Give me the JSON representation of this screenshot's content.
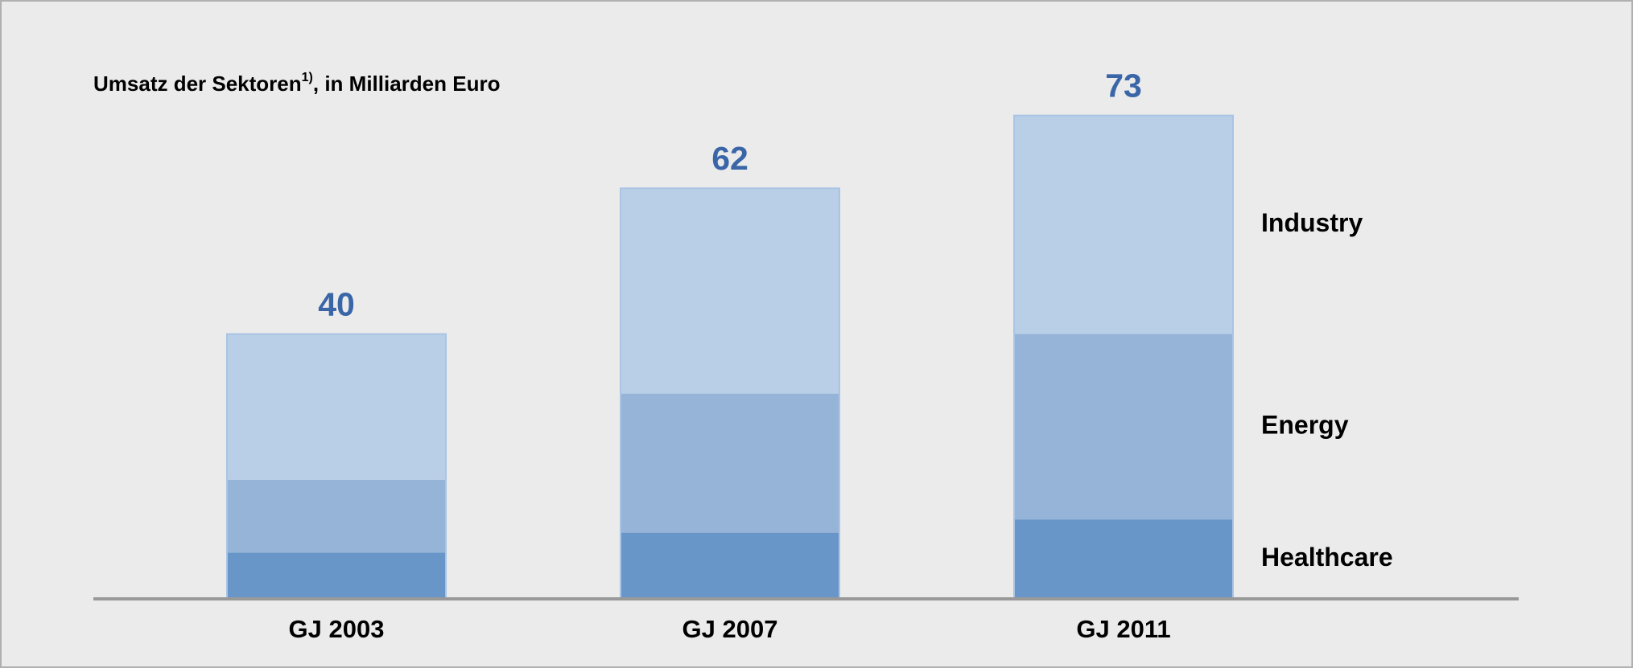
{
  "chart_data": {
    "type": "stacked_bar",
    "title": "Umsatz der Sektoren",
    "title_footnote": "1)",
    "title_suffix": ", in Milliarden Euro",
    "categories": [
      "GJ 2003",
      "GJ 2007",
      "GJ 2011"
    ],
    "series": [
      {
        "name": "Healthcare",
        "color": "#6896c8",
        "values": [
          7,
          10,
          12
        ]
      },
      {
        "name": "Energy",
        "color": "#96b4d8",
        "values": [
          11,
          21,
          28
        ]
      },
      {
        "name": "Industry",
        "color": "#b8cfe7",
        "values": [
          22,
          31,
          33
        ]
      }
    ],
    "totals": [
      40,
      62,
      73
    ],
    "totals_color": "#3a66a8",
    "ylim": [
      0,
      80
    ]
  }
}
